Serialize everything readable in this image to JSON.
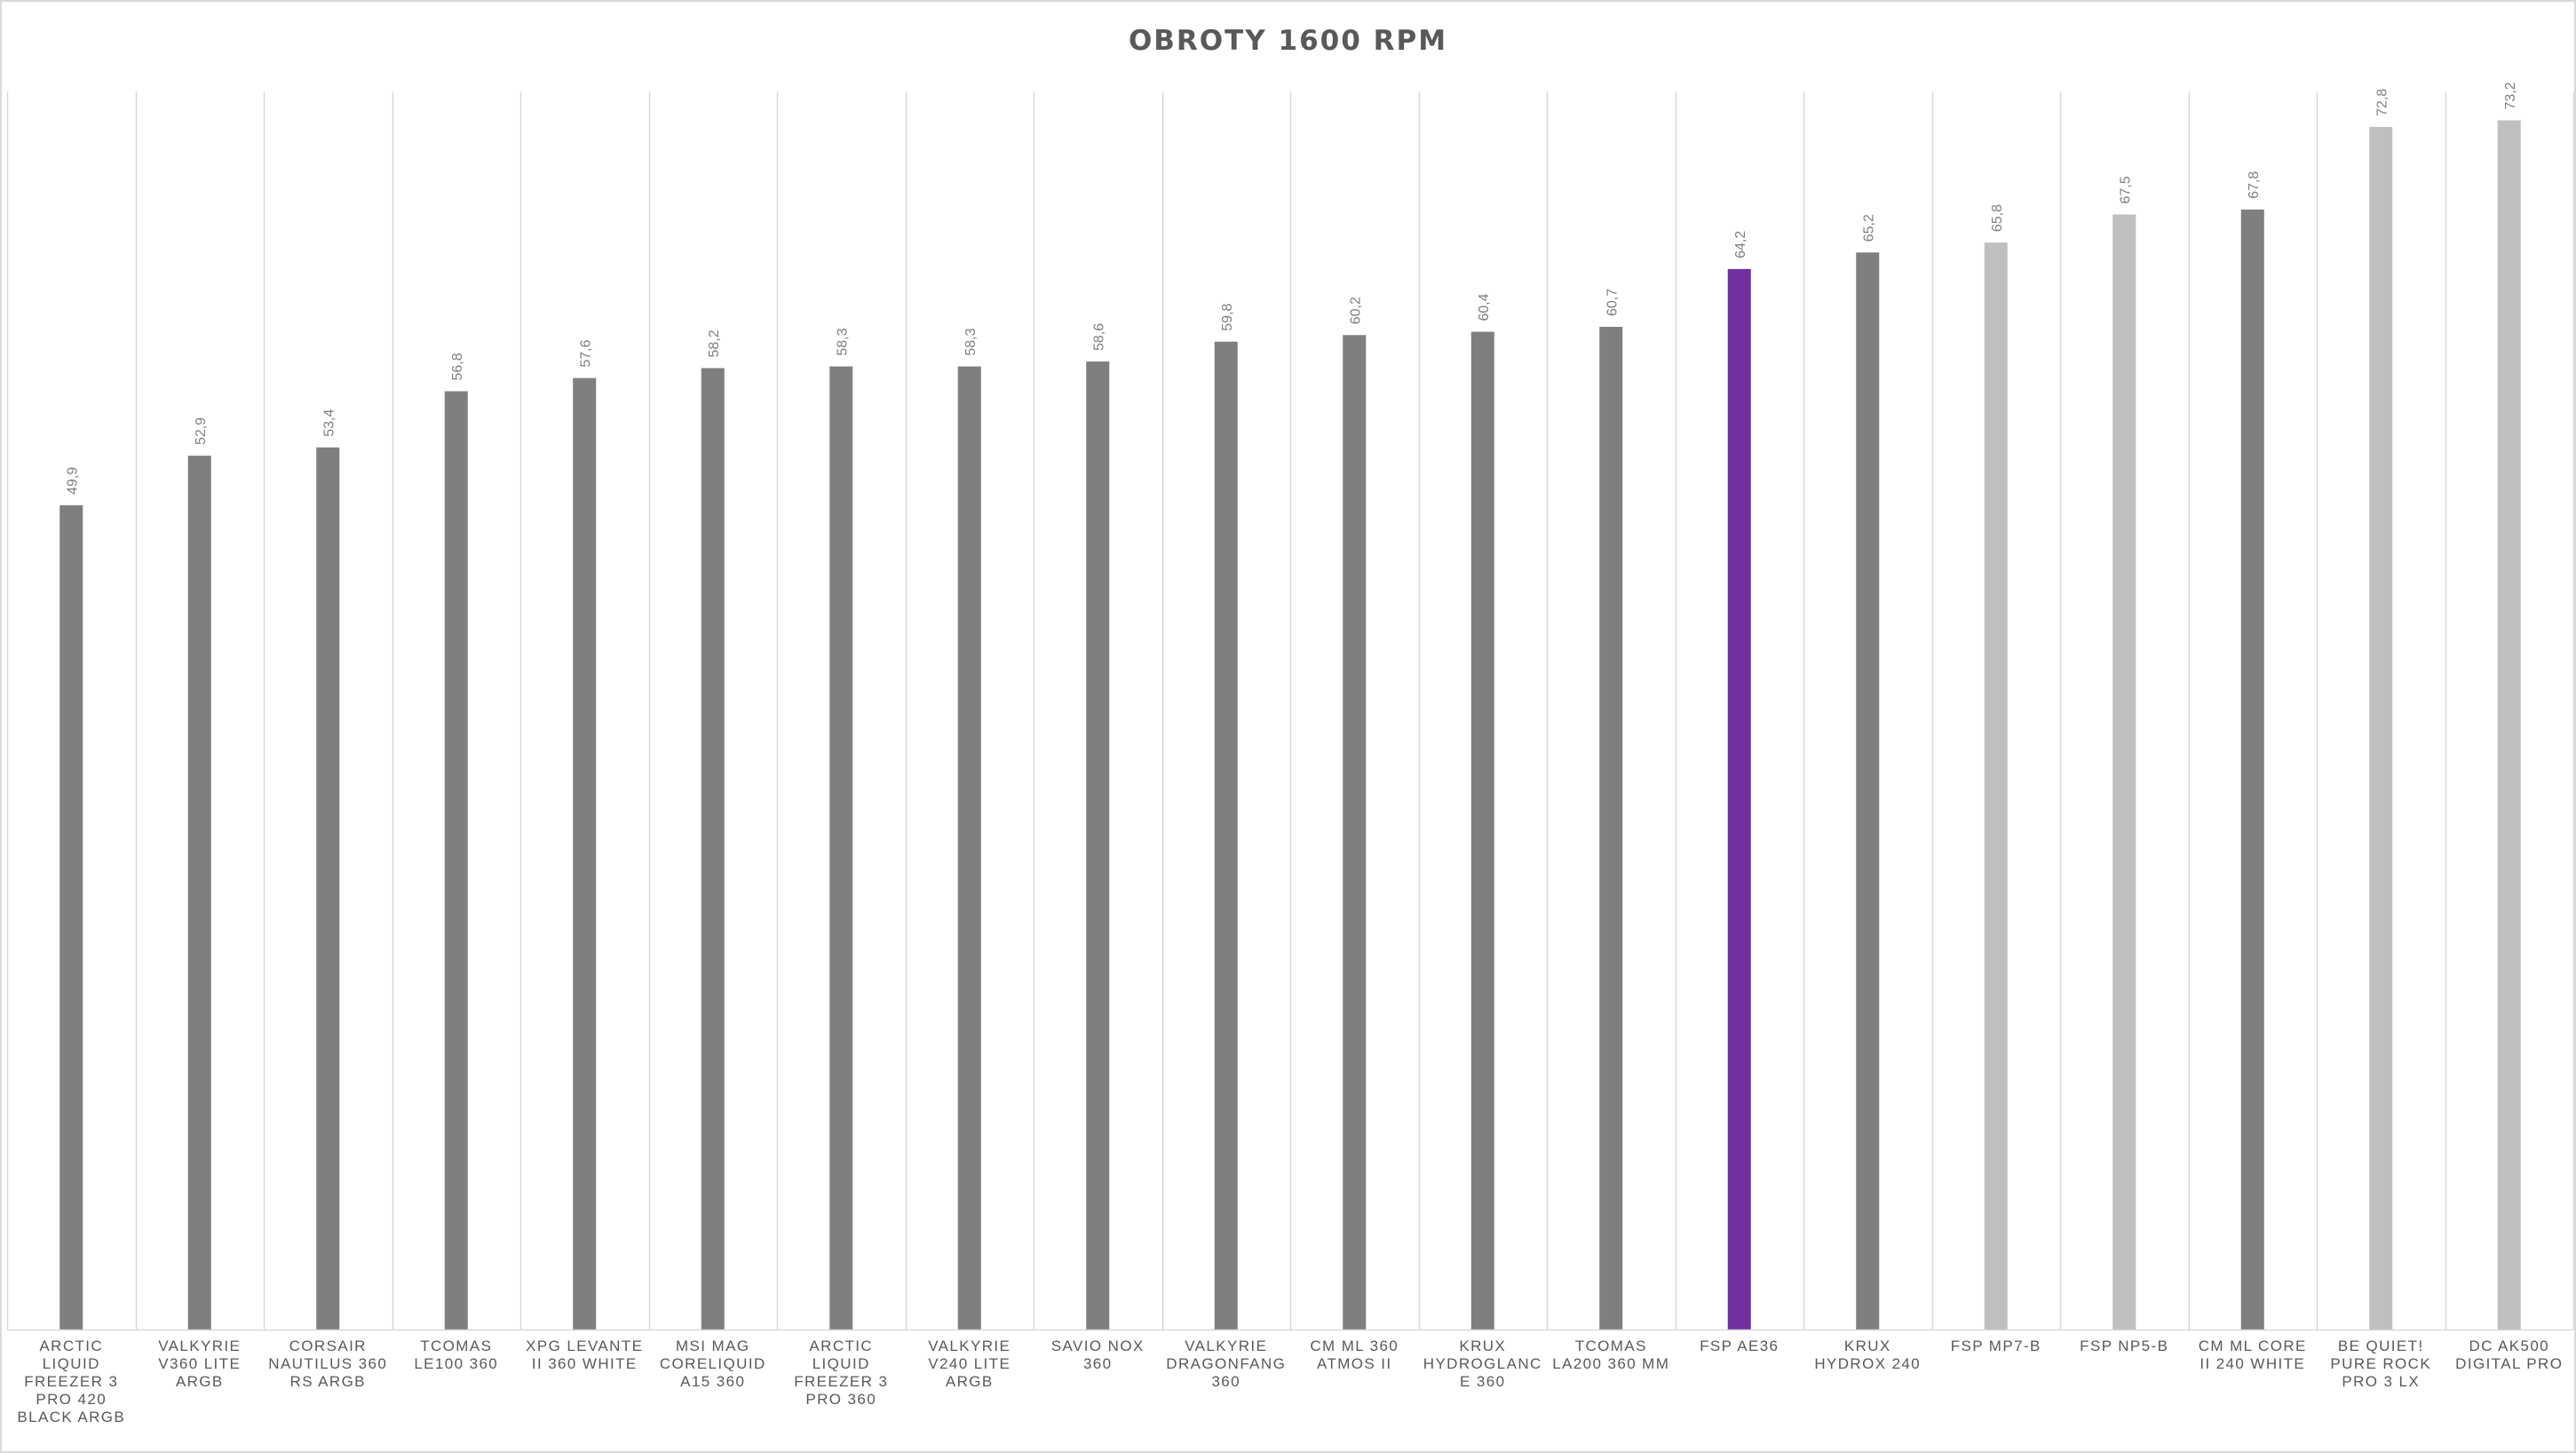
{
  "chart_data": {
    "type": "bar",
    "title": "OBROTY 1600 RPM",
    "xlabel": "",
    "ylabel": "",
    "ylim": [
      0,
      80
    ],
    "grid": "vertical category separators only",
    "legend": "none",
    "categories": [
      "ARCTIC LIQUID FREEZER 3 PRO 420 BLACK ARGB",
      "VALKYRIE V360 LITE ARGB",
      "CORSAIR NAUTILUS 360 RS ARGB",
      "TCOMAS LE100 360",
      "XPG LEVANTE II 360 WHITE",
      "MSI MAG CORELIQUID A15 360",
      "ARCTIC LIQUID FREEZER 3 PRO 360",
      "VALKYRIE V240 LITE ARGB",
      "SAVIO NOX 360",
      "VALKYRIE DRAGONFANG 360",
      "CM ML 360 ATMOS II",
      "KRUX HYDROGLANCE 360",
      "TCOMAS LA200 360 MM",
      "FSP AE36",
      "KRUX HYDROX 240",
      "FSP MP7-B",
      "FSP NP5-B",
      "CM ML CORE II 240 WHITE",
      "BE QUIET! PURE ROCK PRO 3 LX",
      "DC AK500 DIGITAL PRO"
    ],
    "values": [
      49.9,
      52.9,
      53.4,
      56.8,
      57.6,
      58.2,
      58.3,
      58.3,
      58.6,
      59.8,
      60.2,
      60.4,
      60.7,
      64.2,
      65.2,
      65.8,
      67.5,
      67.8,
      72.8,
      73.2
    ],
    "value_labels": [
      "49,9",
      "52,9",
      "53,4",
      "56,8",
      "57,6",
      "58,2",
      "58,3",
      "58,3",
      "58,6",
      "59,8",
      "60,2",
      "60,4",
      "60,7",
      "64,2",
      "65,2",
      "65,8",
      "67,5",
      "67,8",
      "72,8",
      "73,2"
    ],
    "bar_colors": [
      "#7f7f7f",
      "#7f7f7f",
      "#7f7f7f",
      "#7f7f7f",
      "#7f7f7f",
      "#7f7f7f",
      "#7f7f7f",
      "#7f7f7f",
      "#7f7f7f",
      "#7f7f7f",
      "#7f7f7f",
      "#7f7f7f",
      "#7f7f7f",
      "#7030a0",
      "#7f7f7f",
      "#bfbfbf",
      "#bfbfbf",
      "#7f7f7f",
      "#bfbfbf",
      "#bfbfbf"
    ],
    "colors": {
      "default": "#7f7f7f",
      "highlight": "#7030a0",
      "light": "#bfbfbf",
      "gridline": "#d9d9d9",
      "text": "#595959"
    }
  }
}
